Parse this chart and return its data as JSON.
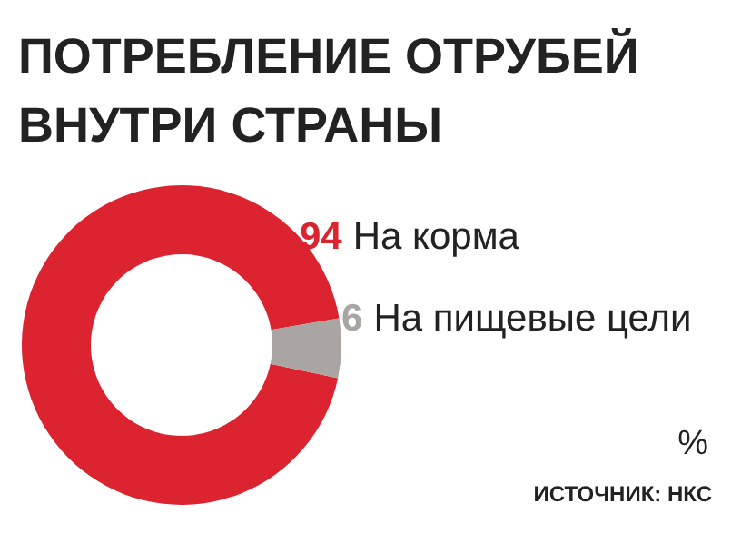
{
  "chart_data": {
    "type": "donut",
    "title": "ПОТРЕБЛЕНИЕ ОТРУБЕЙ ВНУТРИ СТРАНЫ",
    "categories": [
      "На корма",
      "На пищевые цели"
    ],
    "values": [
      94,
      6
    ],
    "colors": [
      "#dc2330",
      "#a8a5a2"
    ],
    "data_labels": true,
    "annotations": [
      "%",
      "ИСТОЧНИК: НКС"
    ]
  }
}
